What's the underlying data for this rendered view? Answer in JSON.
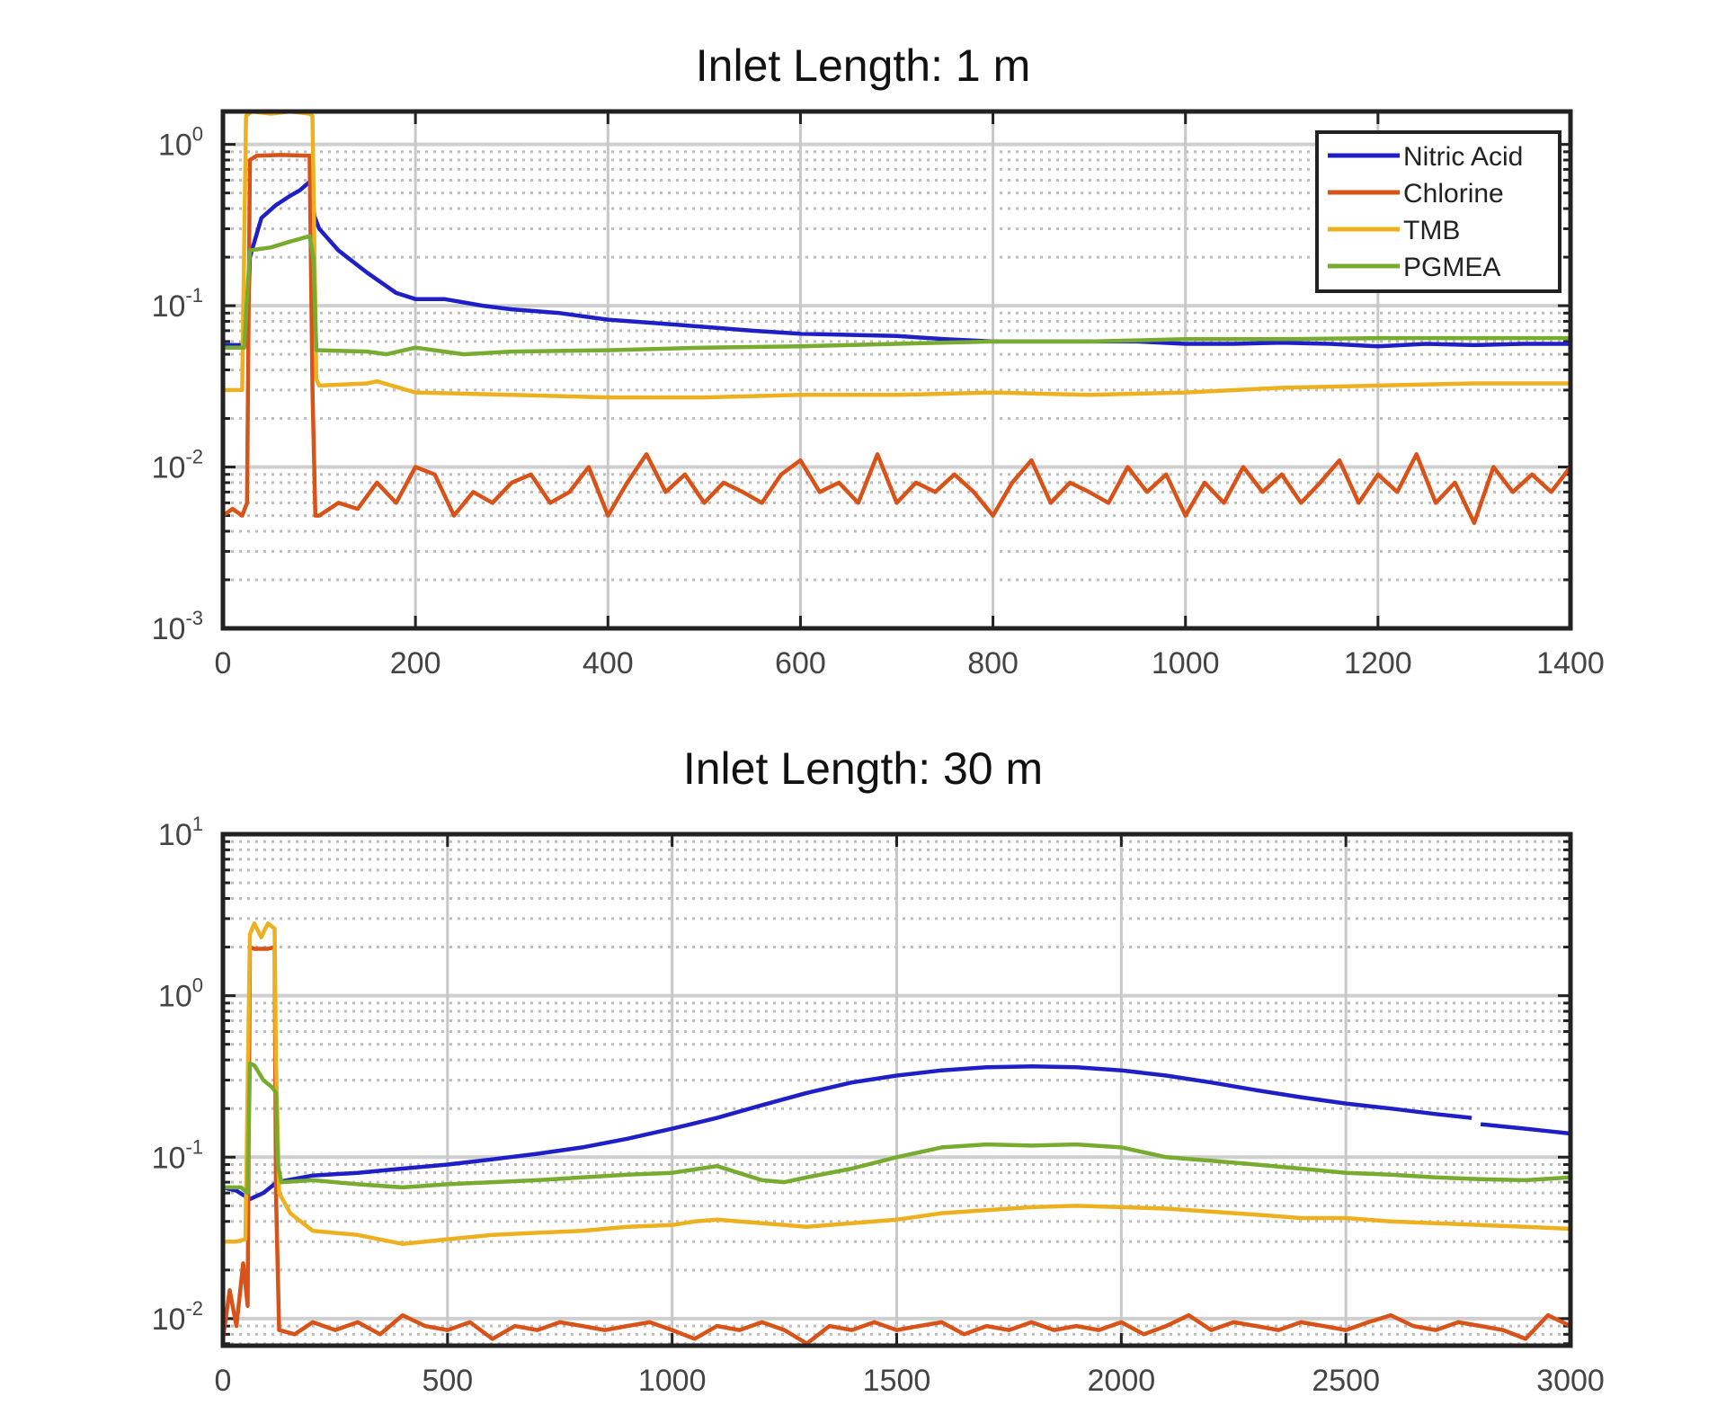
{
  "colors": {
    "nitric_acid": "#1f1fc8",
    "chlorine": "#d95319",
    "tmb": "#edb120",
    "pgmea": "#77ac30",
    "axis": "#222222",
    "grid_major": "#cfcfcf",
    "grid_minor": "#bdbdbd"
  },
  "legend": {
    "items": [
      {
        "label": "Nitric Acid",
        "color_key": "nitric_acid"
      },
      {
        "label": "Chlorine",
        "color_key": "chlorine"
      },
      {
        "label": "TMB",
        "color_key": "tmb"
      },
      {
        "label": "PGMEA",
        "color_key": "pgmea"
      }
    ]
  },
  "chart_data": [
    {
      "type": "line",
      "title": "Inlet Length: 1 m",
      "xlabel": "",
      "ylabel": "",
      "yscale": "log",
      "xlim": [
        0,
        1400
      ],
      "ylim": [
        0.001,
        1.6
      ],
      "xticks": [
        0,
        200,
        400,
        600,
        800,
        1000,
        1200,
        1400
      ],
      "yticks": [
        {
          "base": "10",
          "exp": "0",
          "value": 1
        },
        {
          "base": "10",
          "exp": "-1",
          "value": 0.1
        },
        {
          "base": "10",
          "exp": "-2",
          "value": 0.01
        },
        {
          "base": "10",
          "exp": "-3",
          "value": 0.001
        }
      ],
      "grid": true,
      "legend_position": "upper right",
      "series": [
        {
          "name": "Nitric Acid",
          "color_key": "nitric_acid",
          "x": [
            0,
            25,
            28,
            40,
            55,
            70,
            80,
            92,
            95,
            100,
            120,
            150,
            180,
            200,
            230,
            270,
            300,
            350,
            400,
            450,
            500,
            550,
            600,
            650,
            700,
            750,
            800,
            850,
            900,
            950,
            1000,
            1050,
            1100,
            1150,
            1200,
            1250,
            1300,
            1350,
            1400
          ],
          "y": [
            0.057,
            0.057,
            0.2,
            0.35,
            0.42,
            0.48,
            0.52,
            0.6,
            0.36,
            0.3,
            0.22,
            0.16,
            0.12,
            0.11,
            0.11,
            0.1,
            0.095,
            0.09,
            0.082,
            0.078,
            0.074,
            0.07,
            0.067,
            0.066,
            0.065,
            0.062,
            0.06,
            0.06,
            0.06,
            0.06,
            0.058,
            0.058,
            0.059,
            0.058,
            0.056,
            0.058,
            0.057,
            0.058,
            0.058
          ]
        },
        {
          "name": "Chlorine",
          "color_key": "chlorine",
          "x": [
            0,
            10,
            20,
            25,
            28,
            35,
            60,
            90,
            93,
            96,
            100,
            120,
            140,
            160,
            180,
            200,
            220,
            240,
            260,
            280,
            300,
            320,
            340,
            360,
            380,
            400,
            420,
            440,
            460,
            480,
            500,
            520,
            540,
            560,
            580,
            600,
            620,
            640,
            660,
            680,
            700,
            720,
            740,
            760,
            780,
            800,
            820,
            840,
            860,
            880,
            900,
            920,
            940,
            960,
            980,
            1000,
            1020,
            1040,
            1060,
            1080,
            1100,
            1120,
            1140,
            1160,
            1180,
            1200,
            1220,
            1240,
            1260,
            1280,
            1300,
            1320,
            1340,
            1360,
            1380,
            1400
          ],
          "y": [
            0.005,
            0.0055,
            0.005,
            0.006,
            0.8,
            0.85,
            0.86,
            0.85,
            0.03,
            0.005,
            0.005,
            0.006,
            0.0055,
            0.008,
            0.006,
            0.01,
            0.009,
            0.005,
            0.007,
            0.006,
            0.008,
            0.009,
            0.006,
            0.007,
            0.01,
            0.005,
            0.008,
            0.012,
            0.007,
            0.009,
            0.006,
            0.008,
            0.007,
            0.006,
            0.009,
            0.011,
            0.007,
            0.008,
            0.006,
            0.012,
            0.006,
            0.008,
            0.007,
            0.009,
            0.007,
            0.005,
            0.008,
            0.011,
            0.006,
            0.008,
            0.007,
            0.006,
            0.01,
            0.007,
            0.009,
            0.005,
            0.008,
            0.006,
            0.01,
            0.007,
            0.009,
            0.006,
            0.008,
            0.011,
            0.006,
            0.009,
            0.007,
            0.012,
            0.006,
            0.008,
            0.0045,
            0.01,
            0.007,
            0.009,
            0.007,
            0.01
          ]
        },
        {
          "name": "TMB",
          "color_key": "tmb",
          "x": [
            0,
            20,
            24,
            30,
            50,
            70,
            90,
            93,
            97,
            100,
            150,
            160,
            200,
            300,
            400,
            500,
            600,
            700,
            800,
            900,
            1000,
            1100,
            1200,
            1300,
            1400
          ],
          "y": [
            0.03,
            0.03,
            1.5,
            1.6,
            1.55,
            1.6,
            1.55,
            1.5,
            0.035,
            0.032,
            0.033,
            0.034,
            0.029,
            0.028,
            0.027,
            0.027,
            0.028,
            0.028,
            0.029,
            0.028,
            0.029,
            0.031,
            0.032,
            0.033,
            0.033
          ]
        },
        {
          "name": "PGMEA",
          "color_key": "pgmea",
          "x": [
            0,
            22,
            28,
            50,
            70,
            90,
            94,
            97,
            100,
            150,
            170,
            200,
            250,
            300,
            400,
            500,
            600,
            700,
            800,
            900,
            1000,
            1100,
            1200,
            1300,
            1400
          ],
          "y": [
            0.055,
            0.055,
            0.22,
            0.23,
            0.25,
            0.27,
            0.2,
            0.053,
            0.053,
            0.052,
            0.05,
            0.055,
            0.05,
            0.052,
            0.053,
            0.055,
            0.056,
            0.058,
            0.06,
            0.06,
            0.062,
            0.062,
            0.063,
            0.063,
            0.063
          ]
        }
      ]
    },
    {
      "type": "line",
      "title": "Inlet Length: 30 m",
      "xlabel": "",
      "ylabel": "",
      "yscale": "log",
      "xlim": [
        0,
        3000
      ],
      "ylim": [
        0.0068,
        10
      ],
      "xticks": [
        0,
        500,
        1000,
        1500,
        2000,
        2500,
        3000
      ],
      "yticks": [
        {
          "base": "10",
          "exp": "1",
          "value": 10
        },
        {
          "base": "10",
          "exp": "0",
          "value": 1
        },
        {
          "base": "10",
          "exp": "-1",
          "value": 0.1
        },
        {
          "base": "10",
          "exp": "-2",
          "value": 0.01
        }
      ],
      "grid": true,
      "legend_position": "none",
      "series": [
        {
          "name": "Nitric Acid",
          "color_key": "nitric_acid",
          "x": [
            0,
            30,
            60,
            90,
            120,
            200,
            300,
            400,
            500,
            600,
            700,
            800,
            900,
            1000,
            1100,
            1200,
            1300,
            1400,
            1500,
            1600,
            1700,
            1800,
            1900,
            2000,
            2100,
            2200,
            2300,
            2400,
            2500,
            2600,
            2700,
            2780,
            null,
            2800,
            2850,
            2900,
            2950,
            3000
          ],
          "y": [
            0.065,
            0.062,
            0.055,
            0.06,
            0.07,
            0.077,
            0.08,
            0.085,
            0.09,
            0.097,
            0.105,
            0.115,
            0.13,
            0.15,
            0.175,
            0.21,
            0.25,
            0.29,
            0.32,
            0.345,
            0.36,
            0.365,
            0.36,
            0.345,
            0.32,
            0.29,
            0.26,
            0.235,
            0.215,
            0.2,
            0.185,
            0.175,
            null,
            0.16,
            0.155,
            0.15,
            0.145,
            0.14
          ]
        },
        {
          "name": "Chlorine",
          "color_key": "chlorine",
          "x": [
            0,
            15,
            30,
            45,
            55,
            60,
            70,
            100,
            115,
            118,
            125,
            160,
            200,
            250,
            300,
            350,
            400,
            450,
            500,
            550,
            600,
            650,
            700,
            750,
            800,
            850,
            900,
            950,
            1000,
            1050,
            1100,
            1150,
            1200,
            1250,
            1300,
            1350,
            1400,
            1450,
            1500,
            1550,
            1600,
            1650,
            1700,
            1750,
            1800,
            1850,
            1900,
            1950,
            2000,
            2050,
            2100,
            2150,
            2200,
            2250,
            2300,
            2350,
            2400,
            2450,
            2500,
            2550,
            2600,
            2650,
            2700,
            2750,
            2800,
            2850,
            2900,
            2950,
            3000
          ],
          "y": [
            0.0075,
            0.015,
            0.009,
            0.022,
            0.012,
            2.0,
            1.95,
            1.95,
            2.0,
            0.06,
            0.0085,
            0.008,
            0.0095,
            0.0085,
            0.0095,
            0.008,
            0.0105,
            0.009,
            0.0085,
            0.0095,
            0.0075,
            0.009,
            0.0085,
            0.0095,
            0.009,
            0.0085,
            0.009,
            0.0095,
            0.0085,
            0.0075,
            0.009,
            0.0085,
            0.0095,
            0.0085,
            0.007,
            0.009,
            0.0085,
            0.0095,
            0.0085,
            0.009,
            0.0095,
            0.008,
            0.009,
            0.0085,
            0.0095,
            0.0085,
            0.009,
            0.0085,
            0.0095,
            0.008,
            0.009,
            0.0105,
            0.0085,
            0.0095,
            0.009,
            0.0085,
            0.0095,
            0.009,
            0.0085,
            0.0095,
            0.0105,
            0.009,
            0.0085,
            0.0095,
            0.009,
            0.0085,
            0.0075,
            0.0105,
            0.009
          ]
        },
        {
          "name": "TMB",
          "color_key": "tmb",
          "x": [
            0,
            30,
            50,
            60,
            70,
            85,
            100,
            115,
            118,
            125,
            150,
            200,
            300,
            400,
            450,
            500,
            600,
            700,
            800,
            900,
            1000,
            1050,
            1100,
            1200,
            1300,
            1400,
            1500,
            1600,
            1700,
            1800,
            1900,
            2000,
            2100,
            2200,
            2300,
            2400,
            2500,
            2600,
            2700,
            2800,
            2900,
            3000
          ],
          "y": [
            0.03,
            0.03,
            0.031,
            2.4,
            2.8,
            2.3,
            2.8,
            2.6,
            0.4,
            0.06,
            0.045,
            0.035,
            0.033,
            0.029,
            0.03,
            0.031,
            0.033,
            0.034,
            0.035,
            0.037,
            0.038,
            0.04,
            0.041,
            0.039,
            0.037,
            0.039,
            0.041,
            0.045,
            0.047,
            0.049,
            0.05,
            0.049,
            0.048,
            0.046,
            0.044,
            0.042,
            0.042,
            0.04,
            0.039,
            0.038,
            0.037,
            0.036
          ]
        },
        {
          "name": "PGMEA",
          "color_key": "pgmea",
          "x": [
            0,
            40,
            55,
            60,
            70,
            90,
            110,
            118,
            122,
            130,
            200,
            300,
            400,
            500,
            600,
            700,
            800,
            900,
            1000,
            1100,
            1200,
            1250,
            1300,
            1400,
            1500,
            1600,
            1700,
            1800,
            1900,
            2000,
            2100,
            2200,
            2300,
            2400,
            2500,
            2600,
            2700,
            2800,
            2900,
            3000
          ],
          "y": [
            0.065,
            0.065,
            0.06,
            0.38,
            0.37,
            0.3,
            0.27,
            0.25,
            0.09,
            0.07,
            0.072,
            0.068,
            0.065,
            0.068,
            0.07,
            0.072,
            0.075,
            0.078,
            0.08,
            0.088,
            0.072,
            0.07,
            0.075,
            0.085,
            0.1,
            0.115,
            0.12,
            0.118,
            0.12,
            0.115,
            0.1,
            0.095,
            0.09,
            0.085,
            0.08,
            0.078,
            0.075,
            0.073,
            0.072,
            0.075
          ]
        }
      ]
    }
  ],
  "plots": [
    {
      "title": "Inlet Length: 1 m"
    },
    {
      "title": "Inlet Length: 30 m"
    }
  ]
}
